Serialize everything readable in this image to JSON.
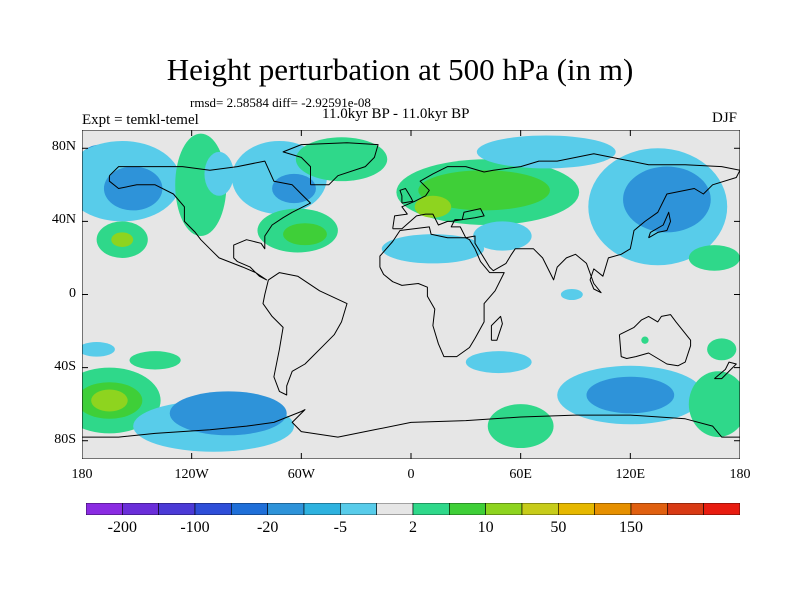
{
  "title": "Height perturbation at 500 hPa (in m)",
  "stats_line": "rmsd= 2.58584 diff= -2.92591e-08",
  "left_label": "Expt = temkl-temel",
  "center_label": "11.0kyr BP - 11.0kyr BP",
  "right_label": "DJF",
  "lat_labels": [
    {
      "value": 80,
      "text": "80N"
    },
    {
      "value": 40,
      "text": "40N"
    },
    {
      "value": 0,
      "text": "0"
    },
    {
      "value": -40,
      "text": "40S"
    },
    {
      "value": -80,
      "text": "80S"
    }
  ],
  "lon_labels": [
    {
      "value": -180,
      "text": "180"
    },
    {
      "value": -120,
      "text": "120W"
    },
    {
      "value": -60,
      "text": "60W"
    },
    {
      "value": 0,
      "text": "0"
    },
    {
      "value": 60,
      "text": "60E"
    },
    {
      "value": 120,
      "text": "120E"
    },
    {
      "value": 180,
      "text": "180"
    }
  ],
  "map": {
    "lon_range": [
      -180,
      180
    ],
    "lat_range": [
      -90,
      90
    ],
    "background": "#e6e6e6"
  },
  "colorbar": {
    "colors": [
      "#8a2be2",
      "#6a2ed9",
      "#4b3ad6",
      "#2e4ed8",
      "#1f6fd8",
      "#2e93d9",
      "#2eb2df",
      "#58ccea",
      "#e6e6e6",
      "#2fd88a",
      "#3fcf38",
      "#8ed41f",
      "#c7cc1a",
      "#e6b800",
      "#e69000",
      "#e06010",
      "#d83a14",
      "#e81c10"
    ],
    "labels": [
      {
        "index": 1,
        "text": "-200"
      },
      {
        "index": 3,
        "text": "-100"
      },
      {
        "index": 5,
        "text": "-20"
      },
      {
        "index": 7,
        "text": "-5"
      },
      {
        "index": 9,
        "text": "2"
      },
      {
        "index": 11,
        "text": "10"
      },
      {
        "index": 13,
        "text": "50"
      },
      {
        "index": 15,
        "text": "150"
      }
    ]
  },
  "anomaly_regions": [
    {
      "lon": -170,
      "lat": 72,
      "rx": 12,
      "ry": 10,
      "color": "#2e93d9"
    },
    {
      "lon": -158,
      "lat": 62,
      "rx": 32,
      "ry": 22,
      "color": "#58ccea"
    },
    {
      "lon": -152,
      "lat": 58,
      "rx": 16,
      "ry": 12,
      "color": "#2e93d9"
    },
    {
      "lon": -158,
      "lat": 30,
      "rx": 14,
      "ry": 10,
      "color": "#2fd88a"
    },
    {
      "lon": -158,
      "lat": 30,
      "rx": 6,
      "ry": 4,
      "color": "#8ed41f"
    },
    {
      "lon": -115,
      "lat": 60,
      "rx": 14,
      "ry": 28,
      "color": "#2fd88a"
    },
    {
      "lon": -105,
      "lat": 66,
      "rx": 8,
      "ry": 12,
      "color": "#58ccea"
    },
    {
      "lon": -72,
      "lat": 64,
      "rx": 26,
      "ry": 20,
      "color": "#58ccea"
    },
    {
      "lon": -64,
      "lat": 58,
      "rx": 12,
      "ry": 8,
      "color": "#2e93d9"
    },
    {
      "lon": -38,
      "lat": 74,
      "rx": 25,
      "ry": 12,
      "color": "#2fd88a"
    },
    {
      "lon": -62,
      "lat": 35,
      "rx": 22,
      "ry": 12,
      "color": "#2fd88a"
    },
    {
      "lon": -58,
      "lat": 33,
      "rx": 12,
      "ry": 6,
      "color": "#3fcf38"
    },
    {
      "lon": 42,
      "lat": 56,
      "rx": 50,
      "ry": 18,
      "color": "#2fd88a"
    },
    {
      "lon": 40,
      "lat": 57,
      "rx": 36,
      "ry": 11,
      "color": "#3fcf38"
    },
    {
      "lon": 12,
      "lat": 48,
      "rx": 10,
      "ry": 6,
      "color": "#8ed41f"
    },
    {
      "lon": 74,
      "lat": 78,
      "rx": 38,
      "ry": 9,
      "color": "#58ccea"
    },
    {
      "lon": 12,
      "lat": 25,
      "rx": 28,
      "ry": 8,
      "color": "#58ccea"
    },
    {
      "lon": 50,
      "lat": 32,
      "rx": 16,
      "ry": 8,
      "color": "#58ccea"
    },
    {
      "lon": 135,
      "lat": 48,
      "rx": 38,
      "ry": 32,
      "color": "#58ccea"
    },
    {
      "lon": 140,
      "lat": 52,
      "rx": 24,
      "ry": 18,
      "color": "#2e93d9"
    },
    {
      "lon": 166,
      "lat": 20,
      "rx": 14,
      "ry": 7,
      "color": "#2fd88a"
    },
    {
      "lon": 88,
      "lat": 0,
      "rx": 6,
      "ry": 3,
      "color": "#58ccea"
    },
    {
      "lon": -165,
      "lat": -58,
      "rx": 28,
      "ry": 18,
      "color": "#2fd88a"
    },
    {
      "lon": -165,
      "lat": -58,
      "rx": 18,
      "ry": 10,
      "color": "#3fcf38"
    },
    {
      "lon": -165,
      "lat": -58,
      "rx": 10,
      "ry": 6,
      "color": "#8ed41f"
    },
    {
      "lon": -172,
      "lat": -30,
      "rx": 10,
      "ry": 4,
      "color": "#58ccea"
    },
    {
      "lon": -140,
      "lat": -36,
      "rx": 14,
      "ry": 5,
      "color": "#2fd88a"
    },
    {
      "lon": -108,
      "lat": -72,
      "rx": 44,
      "ry": 14,
      "color": "#58ccea"
    },
    {
      "lon": -100,
      "lat": -65,
      "rx": 32,
      "ry": 12,
      "color": "#2e93d9"
    },
    {
      "lon": 60,
      "lat": -72,
      "rx": 18,
      "ry": 12,
      "color": "#2fd88a"
    },
    {
      "lon": 48,
      "lat": -37,
      "rx": 18,
      "ry": 6,
      "color": "#58ccea"
    },
    {
      "lon": 120,
      "lat": -55,
      "rx": 40,
      "ry": 16,
      "color": "#58ccea"
    },
    {
      "lon": 120,
      "lat": -55,
      "rx": 24,
      "ry": 10,
      "color": "#2e93d9"
    },
    {
      "lon": 168,
      "lat": -60,
      "rx": 16,
      "ry": 18,
      "color": "#2fd88a"
    },
    {
      "lon": 170,
      "lat": -30,
      "rx": 8,
      "ry": 6,
      "color": "#2fd88a"
    },
    {
      "lon": 128,
      "lat": -25,
      "rx": 2,
      "ry": 2,
      "color": "#2fd88a"
    }
  ],
  "coastlines": [
    {
      "name": "north-america",
      "points": [
        [
          -165,
          65
        ],
        [
          -160,
          70
        ],
        [
          -140,
          70
        ],
        [
          -125,
          70
        ],
        [
          -110,
          68
        ],
        [
          -95,
          70
        ],
        [
          -80,
          73
        ],
        [
          -75,
          62
        ],
        [
          -65,
          60
        ],
        [
          -60,
          55
        ],
        [
          -55,
          50
        ],
        [
          -65,
          45
        ],
        [
          -70,
          42
        ],
        [
          -76,
          38
        ],
        [
          -80,
          32
        ],
        [
          -80,
          25
        ],
        [
          -82,
          28
        ],
        [
          -90,
          30
        ],
        [
          -97,
          27
        ],
        [
          -97,
          20
        ],
        [
          -95,
          18
        ],
        [
          -88,
          15
        ],
        [
          -83,
          10
        ],
        [
          -79,
          8
        ],
        [
          -85,
          12
        ],
        [
          -92,
          15
        ],
        [
          -105,
          20
        ],
        [
          -110,
          25
        ],
        [
          -115,
          30
        ],
        [
          -118,
          34
        ],
        [
          -124,
          40
        ],
        [
          -124,
          48
        ],
        [
          -130,
          55
        ],
        [
          -140,
          60
        ],
        [
          -150,
          60
        ],
        [
          -160,
          58
        ],
        [
          -165,
          62
        ],
        [
          -165,
          65
        ]
      ]
    },
    {
      "name": "greenland",
      "points": [
        [
          -55,
          60
        ],
        [
          -45,
          60
        ],
        [
          -40,
          65
        ],
        [
          -25,
          70
        ],
        [
          -20,
          75
        ],
        [
          -18,
          82
        ],
        [
          -35,
          83
        ],
        [
          -60,
          82
        ],
        [
          -70,
          78
        ],
        [
          -60,
          75
        ],
        [
          -55,
          70
        ],
        [
          -55,
          60
        ]
      ]
    },
    {
      "name": "south-america",
      "points": [
        [
          -78,
          8
        ],
        [
          -72,
          12
        ],
        [
          -62,
          10
        ],
        [
          -50,
          2
        ],
        [
          -35,
          -5
        ],
        [
          -38,
          -15
        ],
        [
          -42,
          -22
        ],
        [
          -48,
          -28
        ],
        [
          -55,
          -35
        ],
        [
          -58,
          -38
        ],
        [
          -65,
          -42
        ],
        [
          -68,
          -50
        ],
        [
          -68,
          -55
        ],
        [
          -72,
          -53
        ],
        [
          -75,
          -45
        ],
        [
          -72,
          -30
        ],
        [
          -70,
          -18
        ],
        [
          -76,
          -12
        ],
        [
          -81,
          -5
        ],
        [
          -80,
          0
        ],
        [
          -78,
          8
        ]
      ]
    },
    {
      "name": "eurasia",
      "points": [
        [
          -10,
          36
        ],
        [
          -9,
          43
        ],
        [
          -2,
          44
        ],
        [
          -5,
          48
        ],
        [
          2,
          51
        ],
        [
          8,
          54
        ],
        [
          10,
          57
        ],
        [
          5,
          62
        ],
        [
          12,
          66
        ],
        [
          20,
          70
        ],
        [
          30,
          70
        ],
        [
          40,
          67
        ],
        [
          45,
          68
        ],
        [
          60,
          70
        ],
        [
          70,
          73
        ],
        [
          80,
          73
        ],
        [
          100,
          77
        ],
        [
          115,
          74
        ],
        [
          130,
          71
        ],
        [
          150,
          71
        ],
        [
          170,
          70
        ],
        [
          180,
          68
        ],
        [
          178,
          64
        ],
        [
          165,
          60
        ],
        [
          160,
          55
        ],
        [
          155,
          58
        ],
        [
          140,
          55
        ],
        [
          135,
          45
        ],
        [
          128,
          40
        ],
        [
          122,
          35
        ],
        [
          121,
          30
        ],
        [
          120,
          25
        ],
        [
          115,
          22
        ],
        [
          108,
          20
        ],
        [
          105,
          10
        ],
        [
          100,
          14
        ],
        [
          98,
          8
        ],
        [
          100,
          3
        ],
        [
          104,
          1
        ],
        [
          100,
          6
        ],
        [
          96,
          17
        ],
        [
          90,
          22
        ],
        [
          85,
          20
        ],
        [
          80,
          15
        ],
        [
          78,
          8
        ],
        [
          72,
          20
        ],
        [
          67,
          25
        ],
        [
          57,
          25
        ],
        [
          55,
          22
        ],
        [
          52,
          17
        ],
        [
          45,
          13
        ],
        [
          43,
          15
        ],
        [
          35,
          28
        ],
        [
          35,
          32
        ],
        [
          30,
          31
        ],
        [
          27,
          37
        ],
        [
          22,
          37
        ],
        [
          24,
          41
        ],
        [
          28,
          41
        ],
        [
          29,
          45
        ],
        [
          38,
          47
        ],
        [
          40,
          43
        ],
        [
          35,
          42
        ],
        [
          28,
          41
        ],
        [
          22,
          40
        ],
        [
          20,
          40
        ],
        [
          15,
          38
        ],
        [
          12,
          44
        ],
        [
          8,
          44
        ],
        [
          3,
          43
        ],
        [
          -5,
          36
        ],
        [
          -10,
          36
        ]
      ]
    },
    {
      "name": "africa",
      "points": [
        [
          -17,
          15
        ],
        [
          -17,
          21
        ],
        [
          -10,
          29
        ],
        [
          -6,
          35
        ],
        [
          10,
          37
        ],
        [
          11,
          33
        ],
        [
          20,
          31
        ],
        [
          30,
          31
        ],
        [
          32,
          30
        ],
        [
          35,
          25
        ],
        [
          38,
          18
        ],
        [
          43,
          12
        ],
        [
          51,
          12
        ],
        [
          46,
          2
        ],
        [
          40,
          -5
        ],
        [
          40,
          -15
        ],
        [
          35,
          -24
        ],
        [
          32,
          -29
        ],
        [
          25,
          -34
        ],
        [
          18,
          -34
        ],
        [
          15,
          -27
        ],
        [
          12,
          -17
        ],
        [
          13,
          -8
        ],
        [
          9,
          -1
        ],
        [
          9,
          4
        ],
        [
          4,
          6
        ],
        [
          -5,
          5
        ],
        [
          -10,
          7
        ],
        [
          -15,
          11
        ],
        [
          -17,
          15
        ]
      ]
    },
    {
      "name": "australia",
      "points": [
        [
          114,
          -22
        ],
        [
          115,
          -34
        ],
        [
          118,
          -35
        ],
        [
          123,
          -34
        ],
        [
          130,
          -32
        ],
        [
          135,
          -35
        ],
        [
          140,
          -38
        ],
        [
          146,
          -39
        ],
        [
          150,
          -37
        ],
        [
          153,
          -28
        ],
        [
          153,
          -25
        ],
        [
          145,
          -15
        ],
        [
          142,
          -11
        ],
        [
          137,
          -12
        ],
        [
          135,
          -15
        ],
        [
          130,
          -12
        ],
        [
          126,
          -14
        ],
        [
          122,
          -18
        ],
        [
          114,
          -22
        ]
      ]
    },
    {
      "name": "madagascar",
      "points": [
        [
          44,
          -25
        ],
        [
          47,
          -25
        ],
        [
          50,
          -16
        ],
        [
          49,
          -12
        ],
        [
          44,
          -17
        ],
        [
          44,
          -25
        ]
      ]
    },
    {
      "name": "uk",
      "points": [
        [
          -5,
          50
        ],
        [
          1,
          51
        ],
        [
          0,
          53
        ],
        [
          -3,
          58
        ],
        [
          -6,
          57
        ],
        [
          -5,
          54
        ],
        [
          -5,
          50
        ]
      ]
    },
    {
      "name": "japan",
      "points": [
        [
          130,
          31
        ],
        [
          135,
          34
        ],
        [
          140,
          35
        ],
        [
          142,
          40
        ],
        [
          141,
          45
        ],
        [
          138,
          38
        ],
        [
          131,
          34
        ],
        [
          130,
          31
        ]
      ]
    },
    {
      "name": "new-zealand",
      "points": [
        [
          166,
          -46
        ],
        [
          172,
          -41
        ],
        [
          174,
          -37
        ],
        [
          178,
          -38
        ],
        [
          175,
          -41
        ],
        [
          170,
          -46
        ],
        [
          166,
          -46
        ]
      ]
    },
    {
      "name": "antarctica",
      "points": [
        [
          -180,
          -78
        ],
        [
          -160,
          -78
        ],
        [
          -140,
          -76
        ],
        [
          -110,
          -74
        ],
        [
          -90,
          -72
        ],
        [
          -75,
          -70
        ],
        [
          -60,
          -64
        ],
        [
          -58,
          -63
        ],
        [
          -65,
          -70
        ],
        [
          -60,
          -75
        ],
        [
          -40,
          -78
        ],
        [
          -20,
          -74
        ],
        [
          0,
          -70
        ],
        [
          30,
          -69
        ],
        [
          60,
          -67
        ],
        [
          90,
          -66
        ],
        [
          120,
          -66
        ],
        [
          150,
          -68
        ],
        [
          165,
          -72
        ],
        [
          170,
          -78
        ],
        [
          180,
          -78
        ]
      ]
    }
  ]
}
